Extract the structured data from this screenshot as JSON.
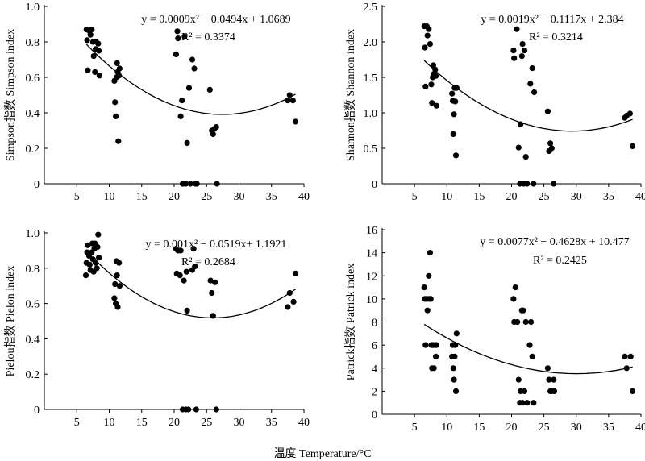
{
  "xlabel": "温度 Temperature/°C",
  "chart_data": [
    {
      "type": "scatter",
      "ylabel": "Simpson指数  Simpson index",
      "equation": "y = 0.0009x² − 0.0494x + 1.0689",
      "r2": "R² = 0.3374",
      "fit": {
        "a": 0.0009,
        "b": -0.0494,
        "c": 1.0689
      },
      "xlim": [
        0,
        40
      ],
      "ylim": [
        0,
        1.0
      ],
      "xticks": [
        5,
        10,
        15,
        20,
        25,
        30,
        35,
        40
      ],
      "xtick_labels": [
        "5",
        "10",
        "15",
        "20",
        "25",
        "30",
        "35",
        "40"
      ],
      "yticks": [
        0,
        0.2,
        0.4,
        0.6,
        0.8,
        1.0
      ],
      "ytick_labels": [
        "0",
        "0.2",
        "0.4",
        "0.6",
        "0.8",
        "1.0"
      ],
      "points": [
        [
          6.5,
          0.87
        ],
        [
          6.6,
          0.81
        ],
        [
          6.7,
          0.64
        ],
        [
          7.0,
          0.86
        ],
        [
          7.1,
          0.84
        ],
        [
          7.3,
          0.87
        ],
        [
          7.5,
          0.8
        ],
        [
          7.6,
          0.72
        ],
        [
          7.8,
          0.63
        ],
        [
          7.9,
          0.76
        ],
        [
          8.0,
          0.8
        ],
        [
          8.3,
          0.79
        ],
        [
          8.4,
          0.75
        ],
        [
          8.5,
          0.61
        ],
        [
          10.8,
          0.58
        ],
        [
          10.9,
          0.46
        ],
        [
          11.0,
          0.38
        ],
        [
          11.1,
          0.6
        ],
        [
          11.2,
          0.68
        ],
        [
          11.3,
          0.63
        ],
        [
          11.4,
          0.24
        ],
        [
          11.5,
          0.61
        ],
        [
          11.6,
          0.65
        ],
        [
          20.3,
          0.73
        ],
        [
          20.5,
          0.86
        ],
        [
          20.6,
          0.82
        ],
        [
          21.0,
          0.38
        ],
        [
          21.2,
          0.47
        ],
        [
          21.3,
          0.0
        ],
        [
          21.4,
          0.0
        ],
        [
          21.6,
          0.83
        ],
        [
          21.8,
          0.0
        ],
        [
          22.0,
          0.23
        ],
        [
          22.3,
          0.54
        ],
        [
          22.5,
          0.0
        ],
        [
          22.8,
          0.7
        ],
        [
          23.1,
          0.65
        ],
        [
          23.3,
          0.0
        ],
        [
          23.5,
          0.0
        ],
        [
          25.5,
          0.53
        ],
        [
          25.8,
          0.3
        ],
        [
          26.0,
          0.28
        ],
        [
          26.2,
          0.31
        ],
        [
          26.5,
          0.32
        ],
        [
          26.6,
          0.0
        ],
        [
          37.5,
          0.47
        ],
        [
          37.8,
          0.5
        ],
        [
          38.3,
          0.47
        ],
        [
          38.7,
          0.35
        ]
      ]
    },
    {
      "type": "scatter",
      "ylabel": "Shannon指数  Shannon index",
      "equation": "y = 0.0019x² − 0.1117x + 2.384",
      "r2": "R² = 0.3214",
      "fit": {
        "a": 0.0019,
        "b": -0.1117,
        "c": 2.384
      },
      "xlim": [
        0,
        40
      ],
      "ylim": [
        0,
        2.5
      ],
      "xticks": [
        5,
        10,
        15,
        20,
        25,
        30,
        35,
        40
      ],
      "xtick_labels": [
        "5",
        "10",
        "15",
        "20",
        "25",
        "30",
        "35",
        "40"
      ],
      "yticks": [
        0,
        0.5,
        1.0,
        1.5,
        2.0,
        2.5
      ],
      "ytick_labels": [
        "0",
        "0.5",
        "1.0",
        "1.5",
        "2.0",
        "2.5"
      ],
      "points": [
        [
          6.5,
          2.22
        ],
        [
          6.6,
          1.92
        ],
        [
          6.7,
          1.37
        ],
        [
          6.9,
          2.22
        ],
        [
          7.0,
          2.09
        ],
        [
          7.2,
          2.18
        ],
        [
          7.4,
          1.97
        ],
        [
          7.6,
          1.4
        ],
        [
          7.7,
          1.14
        ],
        [
          7.8,
          1.5
        ],
        [
          7.9,
          1.67
        ],
        [
          8.0,
          1.55
        ],
        [
          8.2,
          1.61
        ],
        [
          8.3,
          1.52
        ],
        [
          8.4,
          1.1
        ],
        [
          10.8,
          1.27
        ],
        [
          10.9,
          1.17
        ],
        [
          11.0,
          0.7
        ],
        [
          11.1,
          0.98
        ],
        [
          11.2,
          1.35
        ],
        [
          11.3,
          1.16
        ],
        [
          11.4,
          0.4
        ],
        [
          11.5,
          1.35
        ],
        [
          20.3,
          1.88
        ],
        [
          20.4,
          1.77
        ],
        [
          20.8,
          2.18
        ],
        [
          21.1,
          0.51
        ],
        [
          21.3,
          0.0
        ],
        [
          21.4,
          0.84
        ],
        [
          21.6,
          1.8
        ],
        [
          21.7,
          1.97
        ],
        [
          21.9,
          0.0
        ],
        [
          22.0,
          1.88
        ],
        [
          22.2,
          0.38
        ],
        [
          22.4,
          0.0
        ],
        [
          22.9,
          1.41
        ],
        [
          23.2,
          1.63
        ],
        [
          23.4,
          0.0
        ],
        [
          23.5,
          1.29
        ],
        [
          25.6,
          1.02
        ],
        [
          25.8,
          0.46
        ],
        [
          26.0,
          0.57
        ],
        [
          26.2,
          0.5
        ],
        [
          26.5,
          0.0
        ],
        [
          37.5,
          0.93
        ],
        [
          37.8,
          0.96
        ],
        [
          38.3,
          0.99
        ],
        [
          38.7,
          0.53
        ]
      ]
    },
    {
      "type": "scatter",
      "ylabel": "Pielou指数  Pielon index",
      "equation": "y = 0.001x² − 0.0519x+ 1.1921",
      "r2": "R² = 0.2684",
      "fit": {
        "a": 0.001,
        "b": -0.0519,
        "c": 1.1921
      },
      "xlim": [
        0,
        40
      ],
      "ylim": [
        0,
        1.0
      ],
      "xticks": [
        5,
        10,
        15,
        20,
        25,
        30,
        35,
        40
      ],
      "xtick_labels": [
        "5",
        "10",
        "15",
        "20",
        "25",
        "30",
        "35",
        "40"
      ],
      "yticks": [
        0,
        0.2,
        0.4,
        0.6,
        0.8,
        1.0
      ],
      "ytick_labels": [
        "0",
        "0.2",
        "0.4",
        "0.6",
        "0.8",
        "1.0"
      ],
      "points": [
        [
          6.4,
          0.76
        ],
        [
          6.5,
          0.83
        ],
        [
          6.6,
          0.89
        ],
        [
          6.7,
          0.93
        ],
        [
          6.9,
          0.87
        ],
        [
          7.0,
          0.82
        ],
        [
          7.1,
          0.79
        ],
        [
          7.3,
          0.89
        ],
        [
          7.4,
          0.94
        ],
        [
          7.5,
          0.85
        ],
        [
          7.6,
          0.78
        ],
        [
          7.7,
          0.91
        ],
        [
          7.8,
          0.94
        ],
        [
          7.9,
          0.83
        ],
        [
          8.1,
          0.8
        ],
        [
          8.2,
          0.92
        ],
        [
          8.3,
          0.99
        ],
        [
          8.4,
          0.86
        ],
        [
          10.8,
          0.63
        ],
        [
          10.9,
          0.71
        ],
        [
          11.0,
          0.6
        ],
        [
          11.1,
          0.84
        ],
        [
          11.2,
          0.76
        ],
        [
          11.3,
          0.58
        ],
        [
          11.5,
          0.83
        ],
        [
          11.6,
          0.7
        ],
        [
          20.3,
          0.91
        ],
        [
          20.4,
          0.77
        ],
        [
          20.6,
          0.9
        ],
        [
          20.9,
          0.76
        ],
        [
          21.0,
          0.9
        ],
        [
          21.3,
          0.0
        ],
        [
          21.5,
          0.73
        ],
        [
          21.8,
          0.0
        ],
        [
          21.9,
          0.78
        ],
        [
          22.0,
          0.56
        ],
        [
          22.2,
          0.0
        ],
        [
          22.8,
          0.79
        ],
        [
          23.0,
          0.91
        ],
        [
          23.2,
          0.81
        ],
        [
          23.4,
          0.0
        ],
        [
          25.6,
          0.73
        ],
        [
          25.8,
          0.66
        ],
        [
          26.0,
          0.53
        ],
        [
          26.3,
          0.72
        ],
        [
          26.5,
          0.0
        ],
        [
          37.5,
          0.58
        ],
        [
          37.8,
          0.66
        ],
        [
          38.4,
          0.61
        ],
        [
          38.7,
          0.77
        ]
      ]
    },
    {
      "type": "scatter",
      "ylabel": "Patrick指数  Patrick index",
      "equation": "y = 0.0077x² − 0.4628x + 10.477",
      "r2": "R² = 0.2425",
      "fit": {
        "a": 0.0077,
        "b": -0.4628,
        "c": 10.477
      },
      "xlim": [
        0,
        40
      ],
      "ylim": [
        0,
        16
      ],
      "xticks": [
        5,
        10,
        15,
        20,
        25,
        30,
        35,
        40
      ],
      "xtick_labels": [
        "5",
        "10",
        "15",
        "20",
        "25",
        "30",
        "35",
        "40"
      ],
      "yticks": [
        0,
        2,
        4,
        6,
        8,
        10,
        12,
        14,
        16
      ],
      "ytick_labels": [
        "0",
        "2",
        "4",
        "6",
        "8",
        "10",
        "12",
        "14",
        "16"
      ],
      "points": [
        [
          6.5,
          11
        ],
        [
          6.6,
          10
        ],
        [
          6.7,
          6
        ],
        [
          6.9,
          10
        ],
        [
          7.0,
          9
        ],
        [
          7.2,
          12
        ],
        [
          7.3,
          10
        ],
        [
          7.4,
          14
        ],
        [
          7.5,
          10
        ],
        [
          7.6,
          6
        ],
        [
          7.7,
          4
        ],
        [
          7.8,
          6
        ],
        [
          7.9,
          6
        ],
        [
          8.0,
          4
        ],
        [
          8.2,
          6
        ],
        [
          8.3,
          5
        ],
        [
          8.4,
          6
        ],
        [
          10.8,
          5
        ],
        [
          10.9,
          6
        ],
        [
          11.0,
          4
        ],
        [
          11.1,
          3
        ],
        [
          11.2,
          5
        ],
        [
          11.3,
          6
        ],
        [
          11.4,
          2
        ],
        [
          11.5,
          7
        ],
        [
          20.3,
          10
        ],
        [
          20.4,
          8
        ],
        [
          20.6,
          11
        ],
        [
          20.9,
          8
        ],
        [
          21.1,
          3
        ],
        [
          21.3,
          1
        ],
        [
          21.4,
          2
        ],
        [
          21.6,
          9
        ],
        [
          21.7,
          1
        ],
        [
          21.8,
          9
        ],
        [
          22.0,
          2
        ],
        [
          22.2,
          8
        ],
        [
          22.4,
          1
        ],
        [
          22.8,
          6
        ],
        [
          23.0,
          8
        ],
        [
          23.2,
          5
        ],
        [
          23.4,
          1
        ],
        [
          25.6,
          4
        ],
        [
          25.8,
          3
        ],
        [
          26.0,
          2
        ],
        [
          26.2,
          2
        ],
        [
          26.5,
          3
        ],
        [
          26.6,
          2
        ],
        [
          37.5,
          5
        ],
        [
          37.8,
          4
        ],
        [
          38.4,
          5
        ],
        [
          38.7,
          2
        ]
      ]
    }
  ]
}
